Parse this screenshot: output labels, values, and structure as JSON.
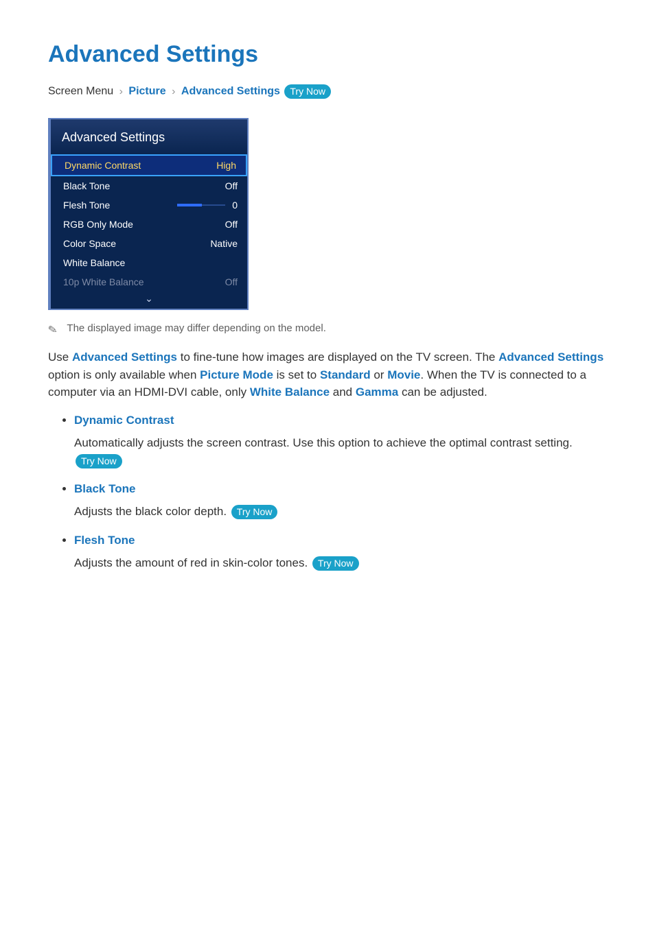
{
  "page": {
    "title": "Advanced Settings",
    "colors": {
      "link": "#1b75bb",
      "body_text": "#333333",
      "try_now_bg": "#1aa1c9",
      "try_now_fg": "#ffffff",
      "panel_bg": "#0a2550",
      "panel_border": "#5f7fbf",
      "panel_selected_border": "#3aa3ff",
      "panel_selected_text": "#ffd966",
      "panel_disabled_text": "#7e8aa6",
      "note_text": "#5e5e5e"
    }
  },
  "breadcrumb": {
    "prefix": "Screen Menu",
    "sep": "›",
    "items": [
      "Picture",
      "Advanced Settings"
    ],
    "try_now_label": "Try Now"
  },
  "panel": {
    "title": "Advanced Settings",
    "rows": {
      "dynamic_contrast": {
        "label": "Dynamic Contrast",
        "value": "High"
      },
      "black_tone": {
        "label": "Black Tone",
        "value": "Off"
      },
      "flesh_tone": {
        "label": "Flesh Tone",
        "value": "0",
        "slider_fill_ratio": 0.5
      },
      "rgb_only": {
        "label": "RGB Only Mode",
        "value": "Off"
      },
      "color_space": {
        "label": "Color Space",
        "value": "Native"
      },
      "white_balance": {
        "label": "White Balance",
        "value": ""
      },
      "tenp_white": {
        "label": "10p White Balance",
        "value": "Off"
      }
    },
    "chevron_glyph": "⌄"
  },
  "note": {
    "icon_glyph": "✎",
    "text": "The displayed image may differ depending on the model."
  },
  "intro": {
    "p1a": "Use ",
    "kw1": "Advanced Settings",
    "p1b": " to fine-tune how images are displayed on the TV screen. The ",
    "kw2": "Advanced Settings",
    "p1c": " option is only available when ",
    "kw3": "Picture Mode",
    "p1d": " is set to ",
    "kw4": "Standard",
    "p1e": " or ",
    "kw5": "Movie",
    "p1f": ". When the TV is connected to a computer via an HDMI-DVI cable, only ",
    "kw6": "White Balance",
    "p1g": " and ",
    "kw7": "Gamma",
    "p1h": " can be adjusted."
  },
  "list": {
    "dynamic_contrast": {
      "title": "Dynamic Contrast",
      "desc": "Automatically adjusts the screen contrast. Use this option to achieve the optimal contrast setting. ",
      "try_now": "Try Now"
    },
    "black_tone": {
      "title": "Black Tone",
      "desc": "Adjusts the black color depth. ",
      "try_now": "Try Now"
    },
    "flesh_tone": {
      "title": "Flesh Tone",
      "desc": "Adjusts the amount of red in skin-color tones. ",
      "try_now": "Try Now"
    }
  }
}
